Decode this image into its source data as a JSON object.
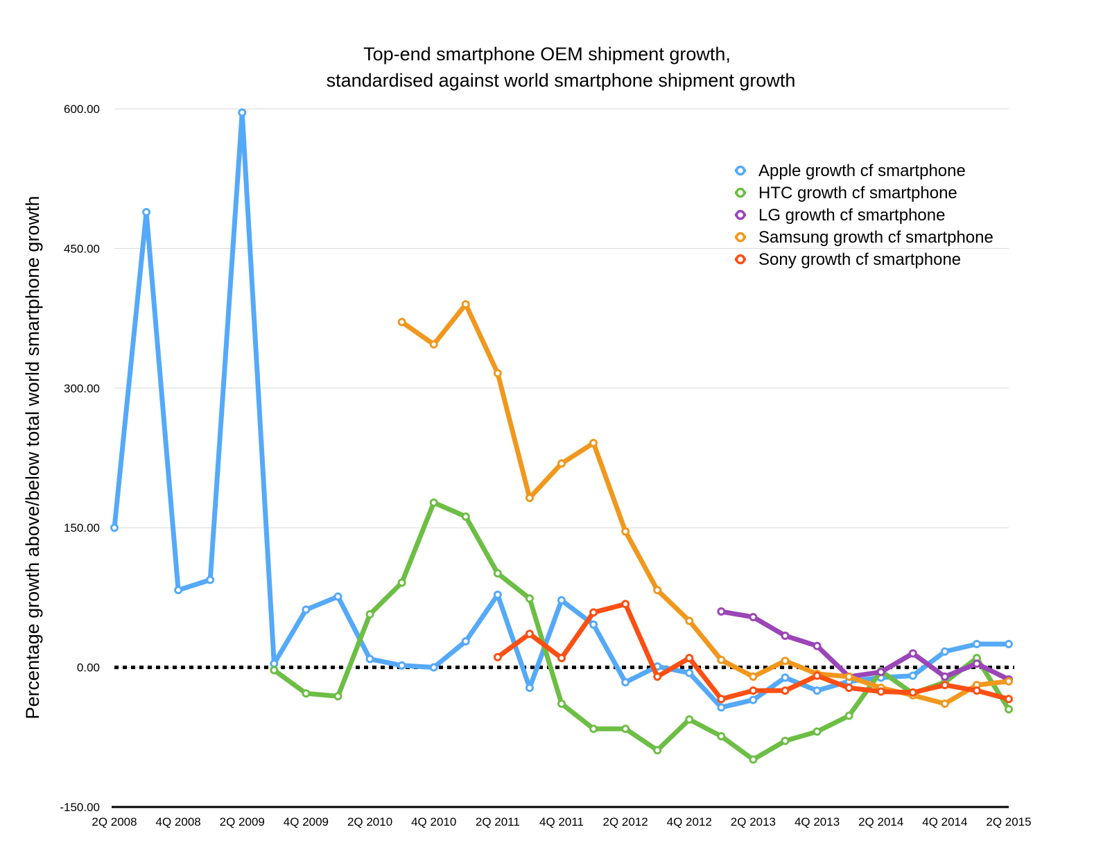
{
  "chart_data": {
    "type": "line",
    "title": "Top-end smartphone OEM shipment growth,",
    "subtitle": "standardised against world smartphone shipment growth",
    "xlabel": "",
    "ylabel": "Percentage growth above/below total world smartphone growth",
    "ylim": [
      -150,
      600
    ],
    "yticks": [
      -150,
      0,
      150,
      300,
      450,
      600
    ],
    "ytick_labels": [
      "-150.00",
      "0.00",
      "150.00",
      "300.00",
      "450.00",
      "600.00"
    ],
    "grid": true,
    "zero_line": "dotted",
    "legend_position": "top-right",
    "x": [
      "2Q 2008",
      "3Q 2008",
      "4Q 2008",
      "1Q 2009",
      "2Q 2009",
      "3Q 2009",
      "4Q 2009",
      "1Q 2010",
      "2Q 2010",
      "3Q 2010",
      "4Q 2010",
      "1Q 2011",
      "2Q 2011",
      "3Q 2011",
      "4Q 2011",
      "1Q 2012",
      "2Q 2012",
      "3Q 2012",
      "4Q 2012",
      "1Q 2013",
      "2Q 2013",
      "3Q 2013",
      "4Q 2013",
      "1Q 2014",
      "2Q 2014",
      "3Q 2014",
      "4Q 2014",
      "1Q 2015",
      "2Q 2015"
    ],
    "xtick_labels": [
      "2Q 2008",
      "4Q 2008",
      "2Q 2009",
      "4Q 2009",
      "2Q 2010",
      "4Q 2010",
      "2Q 2011",
      "4Q 2011",
      "2Q 2012",
      "4Q 2012",
      "2Q 2013",
      "4Q 2013",
      "2Q 2014",
      "4Q 2014",
      "2Q 2015"
    ],
    "series": [
      {
        "name": "Apple growth cf smartphone",
        "color": "#55a9f9",
        "values": [
          150,
          489,
          83,
          94,
          596,
          4,
          62,
          76,
          9,
          2,
          0,
          28,
          78,
          -22,
          72,
          46,
          -16,
          1,
          -6,
          -43,
          -35,
          -11,
          -25,
          -15,
          -11,
          -9,
          17,
          25,
          25
        ]
      },
      {
        "name": "HTC growth cf smartphone",
        "color": "#6dbe45",
        "values": [
          null,
          null,
          null,
          null,
          null,
          -3,
          -28,
          -31,
          57,
          91,
          177,
          162,
          101,
          74,
          -39,
          -66,
          -66,
          -89,
          -56,
          -74,
          -99,
          -79,
          -69,
          -52,
          -4,
          -28,
          -16,
          10,
          -45
        ]
      },
      {
        "name": "LG growth cf smartphone",
        "color": "#9b45b8",
        "values": [
          null,
          null,
          null,
          null,
          null,
          null,
          null,
          null,
          null,
          null,
          null,
          null,
          null,
          null,
          null,
          null,
          null,
          null,
          null,
          60,
          54,
          34,
          23,
          -10,
          -5,
          15,
          -10,
          4,
          -13
        ]
      },
      {
        "name": "Samsung growth cf smartphone",
        "color": "#f0981e",
        "values": [
          null,
          null,
          null,
          null,
          null,
          null,
          null,
          null,
          null,
          371,
          347,
          390,
          316,
          182,
          219,
          241,
          146,
          83,
          50,
          8,
          -10,
          7,
          -7,
          -10,
          -22,
          -30,
          -39,
          -19,
          -15
        ]
      },
      {
        "name": "Sony growth cf smartphone",
        "color": "#fc4f13",
        "values": [
          null,
          null,
          null,
          null,
          null,
          null,
          null,
          null,
          null,
          null,
          null,
          null,
          11,
          36,
          10,
          59,
          68,
          -10,
          10,
          -34,
          -25,
          -25,
          -9,
          -22,
          -26,
          -27,
          -19,
          -25,
          -34
        ]
      }
    ]
  }
}
